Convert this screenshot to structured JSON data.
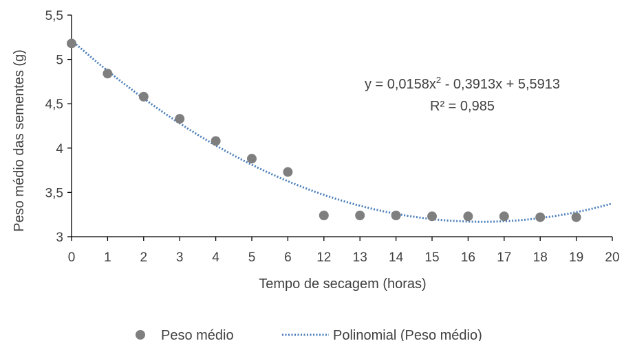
{
  "chart_data": {
    "type": "scatter",
    "xlabel": "Tempo de secagem (horas)",
    "ylabel": "Peso médio das sementes (g)",
    "categories": [
      "0",
      "1",
      "2",
      "3",
      "4",
      "5",
      "6",
      "12",
      "13",
      "14",
      "15",
      "16",
      "17",
      "18",
      "19",
      "20"
    ],
    "yticks": [
      "3",
      "3,5",
      "4",
      "4,5",
      "5",
      "5,5"
    ],
    "ylim": [
      3,
      5.5
    ],
    "grid": false,
    "legend_position": "bottom",
    "series": [
      {
        "name": "Peso médio",
        "kind": "points",
        "color": "#7f7f7f",
        "x": [
          "0",
          "1",
          "2",
          "3",
          "4",
          "5",
          "6",
          "12",
          "13",
          "14",
          "15",
          "16",
          "17",
          "18",
          "19"
        ],
        "values": [
          5.18,
          4.84,
          4.58,
          4.33,
          4.08,
          3.88,
          3.73,
          3.24,
          3.24,
          3.24,
          3.23,
          3.23,
          3.23,
          3.22,
          3.22
        ]
      },
      {
        "name": "Polinomial (Peso médio)",
        "kind": "trendline",
        "color": "#4a7ebb",
        "coefficients": {
          "a": 0.0158,
          "b": -0.3913,
          "c": 5.5913
        }
      }
    ],
    "annotations": {
      "equation_prefix": "y = 0,0158x",
      "equation_exp": "2",
      "equation_suffix": " - 0,3913x + 5,5913",
      "r2": "R² = 0,985"
    }
  }
}
